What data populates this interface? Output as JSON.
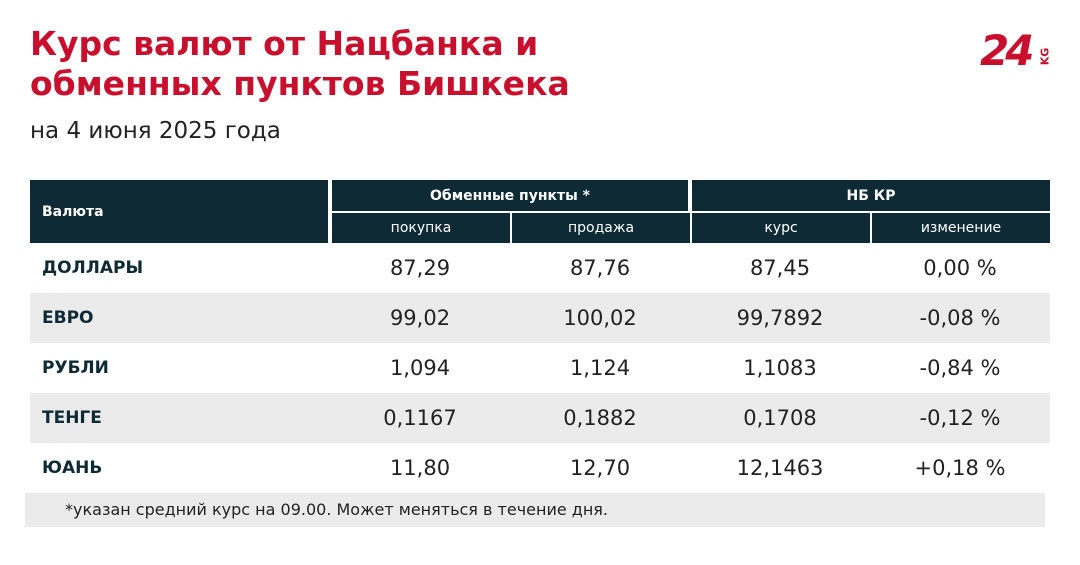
{
  "header": {
    "title_lines": [
      "Курс валют от Нацбанка и",
      "обменных пунктов Бишкека"
    ],
    "subtitle": "на 4 июня 2025 года",
    "logo": "24",
    "logo_suffix": "KG"
  },
  "table": {
    "col_currency": "Валюта",
    "groups": [
      "Обменные пункты *",
      "НБ КР"
    ],
    "subheaders": [
      "покупка",
      "продажа",
      "курс",
      "изменение"
    ],
    "rows": [
      [
        "ДОЛЛАРЫ",
        "87,29",
        "87,76",
        "87,45",
        "0,00 %"
      ],
      [
        "ЕВРО",
        "99,02",
        "100,02",
        "99,7892",
        "-0,08 %"
      ],
      [
        "РУБЛИ",
        "1,094",
        "1,124",
        "1,1083",
        "-0,84 %"
      ],
      [
        "ТЕНГЕ",
        "0,1167",
        "0,1882",
        "0,1708",
        "-0,12 %"
      ],
      [
        "ЮАНЬ",
        "11,80",
        "12,70",
        "12,1463",
        "+0,18 %"
      ]
    ]
  },
  "footnote": "*указан средний курс на 09.00. Может меняться в течение дня."
}
